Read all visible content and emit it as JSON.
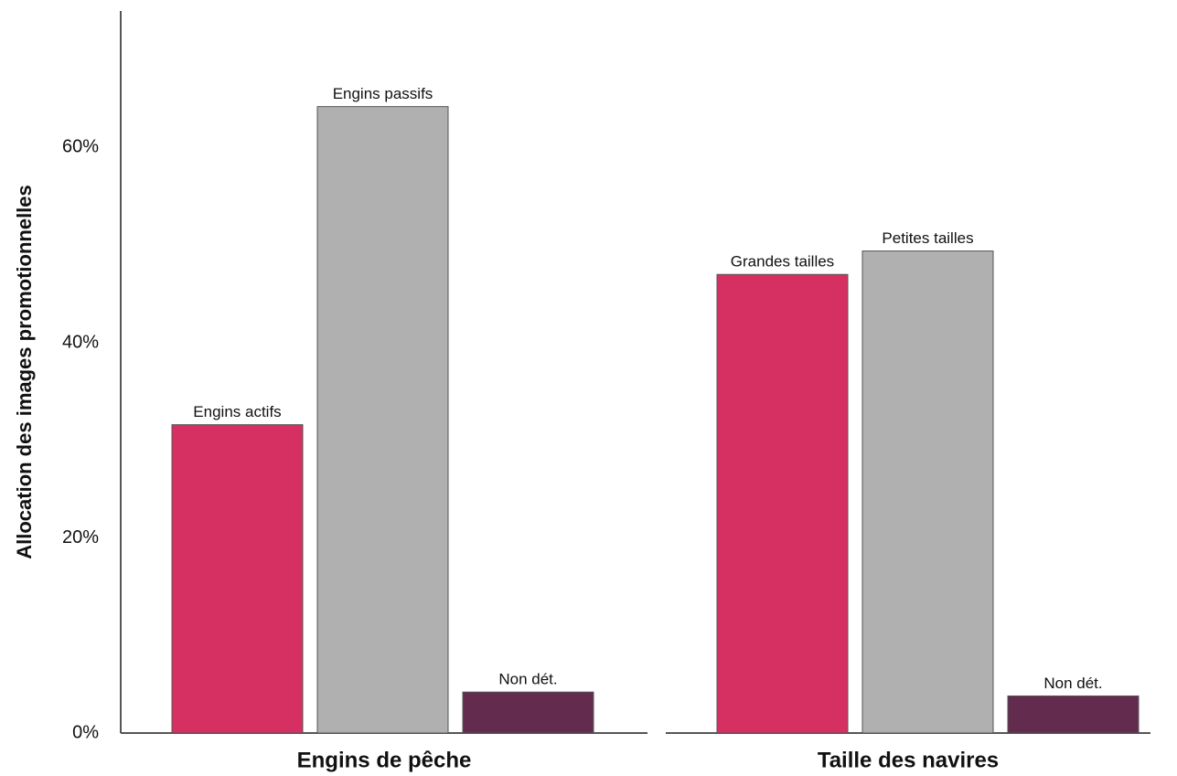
{
  "chart_data": {
    "type": "bar",
    "y_label": "Allocation des images promotionnelles",
    "ylim": [
      0,
      74
    ],
    "yticks": [
      {
        "value": 0,
        "label": "0%"
      },
      {
        "value": 20,
        "label": "20%"
      },
      {
        "value": 40,
        "label": "40%"
      },
      {
        "value": 60,
        "label": "60%"
      }
    ],
    "colors": [
      "#d63062",
      "#b0b0b0",
      "#632c4e"
    ],
    "panels": [
      {
        "title": "Engins de pêche",
        "categories": [
          "Engins actifs",
          "Engins passifs",
          "Non dét."
        ],
        "values": [
          31.6,
          64.2,
          4.2
        ]
      },
      {
        "title": "Taille des navires",
        "categories": [
          "Grandes tailles",
          "Petites tailles",
          "Non dét."
        ],
        "values": [
          47.0,
          49.4,
          3.8
        ]
      }
    ]
  }
}
